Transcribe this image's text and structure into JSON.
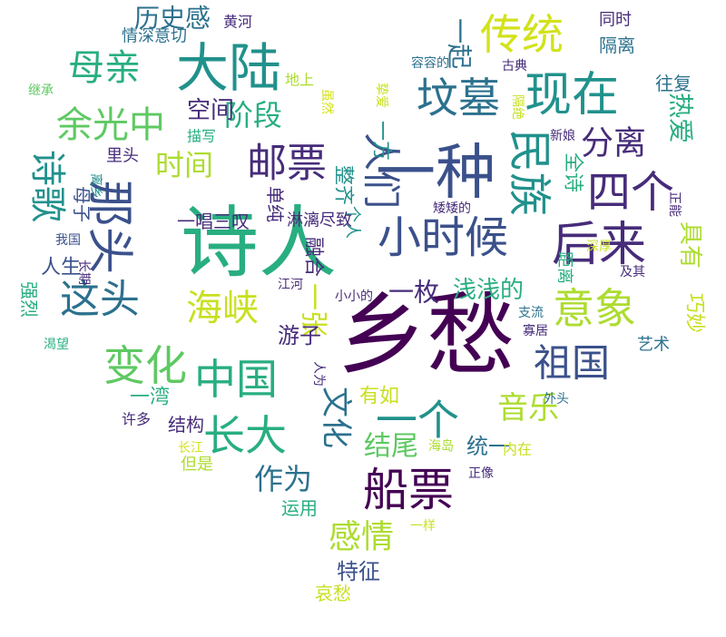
{
  "colors": {
    "dark_purple": "#440154",
    "indigo": "#472c7a",
    "slate_blue": "#3b518b",
    "steel_blue": "#2c718e",
    "teal": "#21918c",
    "green": "#28ae80",
    "light_green": "#5ec962",
    "lime": "#addc30",
    "yellow_green": "#c8e020",
    "yellow": "#d2e21b"
  },
  "words": [
    {
      "text": "乡愁",
      "color": "dark_purple"
    },
    {
      "text": "诗人",
      "color": "green"
    },
    {
      "text": "一种",
      "color": "slate_blue"
    },
    {
      "text": "大陆",
      "color": "teal"
    },
    {
      "text": "传统",
      "color": "yellow"
    },
    {
      "text": "现在",
      "color": "teal"
    },
    {
      "text": "坟墓",
      "color": "steel_blue"
    },
    {
      "text": "母亲",
      "color": "green"
    },
    {
      "text": "历史感",
      "color": "steel_blue"
    },
    {
      "text": "黄河",
      "color": "indigo"
    },
    {
      "text": "同时",
      "color": "indigo"
    },
    {
      "text": "隔离",
      "color": "steel_blue"
    },
    {
      "text": "情深意切",
      "color": "steel_blue"
    },
    {
      "text": "一起",
      "color": "steel_blue"
    },
    {
      "text": "余光中",
      "color": "light_green"
    },
    {
      "text": "阶段",
      "color": "green"
    },
    {
      "text": "空间",
      "color": "indigo"
    },
    {
      "text": "邮票",
      "color": "indigo"
    },
    {
      "text": "时间",
      "color": "lime"
    },
    {
      "text": "诗歌",
      "color": "teal"
    },
    {
      "text": "那头",
      "color": "slate_blue"
    },
    {
      "text": "这头",
      "color": "steel_blue"
    },
    {
      "text": "分离",
      "color": "indigo"
    },
    {
      "text": "四个",
      "color": "indigo"
    },
    {
      "text": "民族",
      "color": "teal"
    },
    {
      "text": "人们",
      "color": "slate_blue"
    },
    {
      "text": "小时候",
      "color": "slate_blue"
    },
    {
      "text": "后来",
      "color": "indigo"
    },
    {
      "text": "具有",
      "color": "lime"
    },
    {
      "text": "热爱",
      "color": "green"
    },
    {
      "text": "往复",
      "color": "steel_blue"
    },
    {
      "text": "古典",
      "color": "indigo"
    },
    {
      "text": "全诗",
      "color": "green"
    },
    {
      "text": "新娘",
      "color": "indigo"
    },
    {
      "text": "海峡",
      "color": "yellow_green"
    },
    {
      "text": "一张",
      "color": "yellow_green"
    },
    {
      "text": "意象",
      "color": "lime"
    },
    {
      "text": "祖国",
      "color": "slate_blue"
    },
    {
      "text": "中国",
      "color": "green"
    },
    {
      "text": "变化",
      "color": "light_green"
    },
    {
      "text": "长大",
      "color": "green"
    },
    {
      "text": "文化",
      "color": "steel_blue"
    },
    {
      "text": "一个",
      "color": "teal"
    },
    {
      "text": "音乐",
      "color": "lime"
    },
    {
      "text": "浅浅的",
      "color": "green"
    },
    {
      "text": "一枚",
      "color": "indigo"
    },
    {
      "text": "距离",
      "color": "green"
    },
    {
      "text": "巧妙",
      "color": "yellow_green"
    },
    {
      "text": "游子",
      "color": "indigo"
    },
    {
      "text": "结尾",
      "color": "light_green"
    },
    {
      "text": "船票",
      "color": "dark_purple"
    },
    {
      "text": "作为",
      "color": "steel_blue"
    },
    {
      "text": "感情",
      "color": "lime"
    },
    {
      "text": "特征",
      "color": "slate_blue"
    },
    {
      "text": "哀愁",
      "color": "yellow_green"
    },
    {
      "text": "运用",
      "color": "green"
    },
    {
      "text": "一样",
      "color": "yellow_green"
    },
    {
      "text": "正像",
      "color": "indigo"
    },
    {
      "text": "有如",
      "color": "yellow_green"
    },
    {
      "text": "统一",
      "color": "steel_blue"
    },
    {
      "text": "内在",
      "color": "yellow_green"
    },
    {
      "text": "海岛",
      "color": "lime"
    },
    {
      "text": "外头",
      "color": "steel_blue"
    },
    {
      "text": "艺术",
      "color": "steel_blue"
    },
    {
      "text": "寡居",
      "color": "indigo"
    },
    {
      "text": "支流",
      "color": "steel_blue"
    },
    {
      "text": "结构",
      "color": "indigo"
    },
    {
      "text": "一湾",
      "color": "green"
    },
    {
      "text": "许多",
      "color": "indigo"
    },
    {
      "text": "长江",
      "color": "yellow"
    },
    {
      "text": "但是",
      "color": "lime"
    },
    {
      "text": "渴望",
      "color": "green"
    },
    {
      "text": "强烈",
      "color": "green"
    },
    {
      "text": "人生",
      "color": "slate_blue"
    },
    {
      "text": "长期",
      "color": "indigo"
    },
    {
      "text": "一唱三叹",
      "color": "indigo"
    },
    {
      "text": "单纯",
      "color": "indigo"
    },
    {
      "text": "淋漓尽致",
      "color": "indigo"
    },
    {
      "text": "整齐",
      "color": "teal"
    },
    {
      "text": "一方",
      "color": "teal"
    },
    {
      "text": "融合",
      "color": "indigo"
    },
    {
      "text": "个人",
      "color": "teal"
    },
    {
      "text": "矮矮的",
      "color": "indigo"
    },
    {
      "text": "江河",
      "color": "indigo"
    },
    {
      "text": "小小的",
      "color": "indigo"
    },
    {
      "text": "人为",
      "color": "indigo"
    },
    {
      "text": "我国",
      "color": "slate_blue"
    },
    {
      "text": "母子",
      "color": "slate_blue"
    },
    {
      "text": "离乡",
      "color": "teal"
    },
    {
      "text": "里头",
      "color": "indigo"
    },
    {
      "text": "描写",
      "color": "green"
    },
    {
      "text": "虽然",
      "color": "yellow"
    },
    {
      "text": "挚爱",
      "color": "yellow_green"
    },
    {
      "text": "隔绝",
      "color": "yellow_green"
    },
    {
      "text": "深厚",
      "color": "yellow_green"
    },
    {
      "text": "及其",
      "color": "indigo"
    },
    {
      "text": "正能",
      "color": "indigo"
    },
    {
      "text": "地上",
      "color": "lime"
    },
    {
      "text": "容容的",
      "color": "steel_blue"
    },
    {
      "text": "继承",
      "color": "light_green"
    }
  ]
}
